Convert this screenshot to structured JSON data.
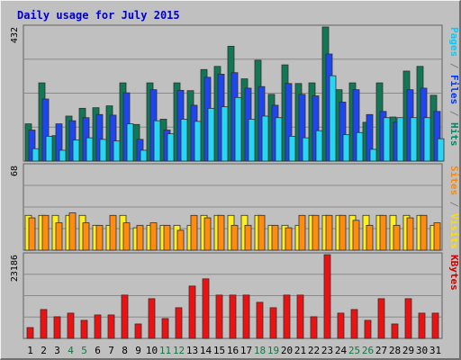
{
  "chart_data": {
    "type": "bar",
    "title": "Daily usage for July 2015",
    "categories": [
      "1",
      "2",
      "3",
      "4",
      "5",
      "6",
      "7",
      "8",
      "9",
      "10",
      "11",
      "12",
      "13",
      "14",
      "15",
      "16",
      "17",
      "18",
      "19",
      "20",
      "21",
      "22",
      "23",
      "24",
      "25",
      "26",
      "27",
      "28",
      "29",
      "30",
      "31"
    ],
    "weekend_days": [
      4,
      5,
      11,
      12,
      18,
      19,
      25,
      26
    ],
    "panels": [
      {
        "ymax_label": "432",
        "ymax": 432,
        "labels": [
          {
            "text": "Pages",
            "color": "#00ccff"
          },
          {
            "text": " / ",
            "color": "#808080"
          },
          {
            "text": "Files",
            "color": "#0033ff"
          },
          {
            "text": " / ",
            "color": "#808080"
          },
          {
            "text": "Hits",
            "color": "#008866"
          }
        ],
        "series": [
          {
            "key": "Hits",
            "color": "#117755",
            "values": [
              120,
              252,
              82,
              145,
              170,
              172,
              178,
              252,
              118,
              252,
              135,
              252,
              227,
              295,
              305,
              370,
              265,
              325,
              215,
              310,
              250,
              252,
              432,
              230,
              252,
              125,
              252,
              142,
              290,
              305,
              212
            ]
          },
          {
            "key": "Files",
            "color": "#1e45ee",
            "values": [
              100,
              200,
              120,
              130,
              140,
              150,
              148,
              220,
              70,
              230,
              100,
              228,
              180,
              270,
              280,
              285,
              235,
              240,
              180,
              250,
              215,
              210,
              345,
              190,
              230,
              150,
              160,
              125,
              230,
              235,
              160
            ]
          },
          {
            "key": "Pages",
            "color": "#26d6f2",
            "values": [
              40,
              80,
              35,
              68,
              75,
              70,
              65,
              120,
              35,
              130,
              88,
              135,
              128,
              170,
              175,
              205,
              135,
              145,
              140,
              80,
              75,
              98,
              275,
              85,
              92,
              38,
              140,
              140,
              140,
              140,
              72
            ]
          }
        ]
      },
      {
        "ymax_label": "68",
        "ymax": 68,
        "labels": [
          {
            "text": "Sites",
            "color": "#ff8800"
          },
          {
            "text": " / ",
            "color": "#808080"
          },
          {
            "text": "Visits",
            "color": "#ffdd00"
          }
        ],
        "series": [
          {
            "key": "Visits",
            "color": "#ffee22",
            "values": [
              28,
              28,
              28,
              28,
              28,
              20,
              20,
              28,
              18,
              20,
              20,
              20,
              20,
              28,
              28,
              28,
              28,
              28,
              20,
              20,
              20,
              28,
              28,
              28,
              28,
              28,
              28,
              28,
              28,
              28,
              20
            ]
          },
          {
            "key": "Sites",
            "color": "#ff8c10",
            "values": [
              26,
              28,
              22,
              30,
              22,
              20,
              28,
              22,
              20,
              22,
              20,
              16,
              28,
              26,
              28,
              20,
              20,
              28,
              20,
              18,
              28,
              28,
              28,
              28,
              24,
              20,
              28,
              20,
              26,
              28,
              22
            ]
          }
        ]
      },
      {
        "ymax_label": "23186",
        "ymax": 23186,
        "labels": [
          {
            "text": "KBytes",
            "color": "#cc0000"
          }
        ],
        "series": [
          {
            "key": "KBytes",
            "color": "#ee1111",
            "values": [
              3000,
              8000,
              6000,
              7000,
              5000,
              6500,
              6500,
              12000,
              4000,
              11000,
              5500,
              8500,
              14500,
              16500,
              12000,
              12000,
              12000,
              10000,
              8500,
              12000,
              12000,
              6000,
              23186,
              7000,
              8000,
              5000,
              11000,
              4000,
              11000,
              7000,
              7000
            ]
          }
        ]
      }
    ],
    "xlabel": "",
    "ylabel": "",
    "grid": true,
    "legend": "right"
  }
}
